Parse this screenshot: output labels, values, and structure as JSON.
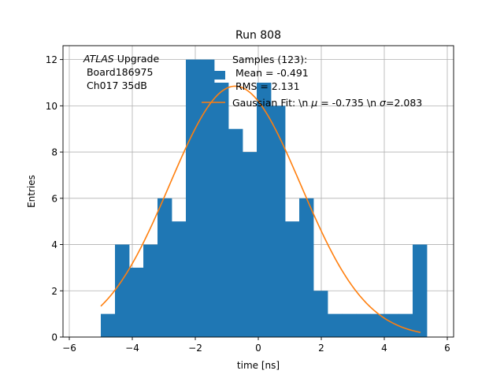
{
  "chart_data": {
    "type": "bar",
    "title": "Run 808",
    "xlabel": "time [ns]",
    "ylabel": "Entries",
    "xlim": [
      -6.2,
      6.2
    ],
    "ylim": [
      0,
      12.6
    ],
    "grid": true,
    "x_ticks": [
      -6,
      -4,
      -2,
      0,
      2,
      4,
      6
    ],
    "x_tick_labels": [
      "−6",
      "−4",
      "−2",
      "0",
      "2",
      "4",
      "6"
    ],
    "y_ticks": [
      0,
      2,
      4,
      6,
      8,
      10,
      12
    ],
    "y_tick_labels": [
      "0",
      "2",
      "4",
      "6",
      "8",
      "10",
      "12"
    ],
    "bin_edges": [
      -5.0,
      -4.55,
      -4.1,
      -3.65,
      -3.2,
      -2.75,
      -2.3,
      -1.85,
      -1.4,
      -0.95,
      -0.5,
      -0.05,
      0.4,
      0.85,
      1.3,
      1.75,
      2.2,
      2.65,
      3.1,
      3.55,
      4.0,
      4.45,
      4.9,
      5.35
    ],
    "counts": [
      1,
      4,
      3,
      4,
      6,
      5,
      12,
      12,
      11,
      9,
      8,
      11,
      10,
      5,
      6,
      2,
      1,
      1,
      1,
      1,
      1,
      1,
      4
    ],
    "series": [
      {
        "name": "Samples (123):",
        "kind": "histogram",
        "color": "#1f77b4",
        "legend_lines": [
          "Samples (123):",
          " Mean = -0.491",
          " RMS = 2.131"
        ]
      },
      {
        "name": "Gaussian Fit: \\n $\\mu$ = -0.735 \\n $\\sigma$=2.083",
        "kind": "line",
        "color": "#ff7f0e",
        "amplitude": 10.85,
        "mu": -0.735,
        "sigma": 2.083,
        "x_range": [
          -5.0,
          5.15
        ]
      }
    ],
    "legend_position": "top-right",
    "annotation": {
      "italic_part": "ATLAS",
      "rest_part": " Upgrade",
      "lines": [
        " Board186975",
        " Ch017 35dB"
      ]
    }
  }
}
